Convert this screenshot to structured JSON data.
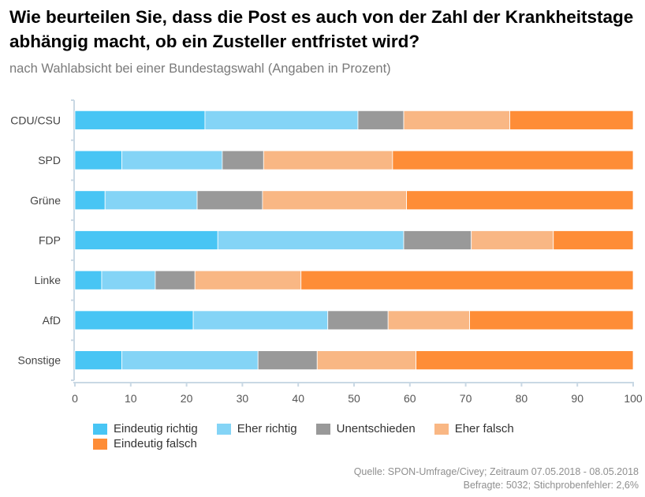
{
  "title": "Wie beurteilen Sie, dass die Post es auch von der Zahl der Krankheitstage abhängig macht, ob ein Zusteller entfristet wird?",
  "subtitle": "nach Wahlabsicht bei einer Bundestagswahl (Angaben in Prozent)",
  "source_line1": "Quelle: SPON-Umfrage/Civey; Zeitraum 07.05.2018 - 08.05.2018",
  "source_line2": "Befragte: 5032; Stichprobenfehler: 2,6%",
  "chart_data": {
    "type": "bar",
    "orientation": "horizontal",
    "stacked": true,
    "categories": [
      "CDU/CSU",
      "SPD",
      "Grüne",
      "FDP",
      "Linke",
      "AfD",
      "Sonstige"
    ],
    "series": [
      {
        "name": "Eindeutig richtig",
        "color": "#48c5f4",
        "values": [
          23.3,
          8.4,
          5.4,
          25.6,
          4.8,
          21.2,
          8.4
        ]
      },
      {
        "name": "Eher richtig",
        "color": "#84d4f6",
        "values": [
          27.4,
          18.0,
          16.5,
          33.3,
          9.6,
          24.1,
          24.4
        ]
      },
      {
        "name": "Unentschieden",
        "color": "#999999",
        "values": [
          8.2,
          7.4,
          11.7,
          12.1,
          7.1,
          10.8,
          10.6
        ]
      },
      {
        "name": "Eher falsch",
        "color": "#f9b784",
        "values": [
          19.0,
          23.1,
          25.8,
          14.7,
          19.0,
          14.6,
          17.7
        ]
      },
      {
        "name": "Eindeutig falsch",
        "color": "#fe8d37",
        "values": [
          22.1,
          43.1,
          40.6,
          14.3,
          59.5,
          29.3,
          38.9
        ]
      }
    ],
    "xlim": [
      0,
      100
    ],
    "xticks": [
      0,
      10,
      20,
      30,
      40,
      50,
      60,
      70,
      80,
      90,
      100
    ],
    "grid": false,
    "legend_position": "bottom-left"
  }
}
